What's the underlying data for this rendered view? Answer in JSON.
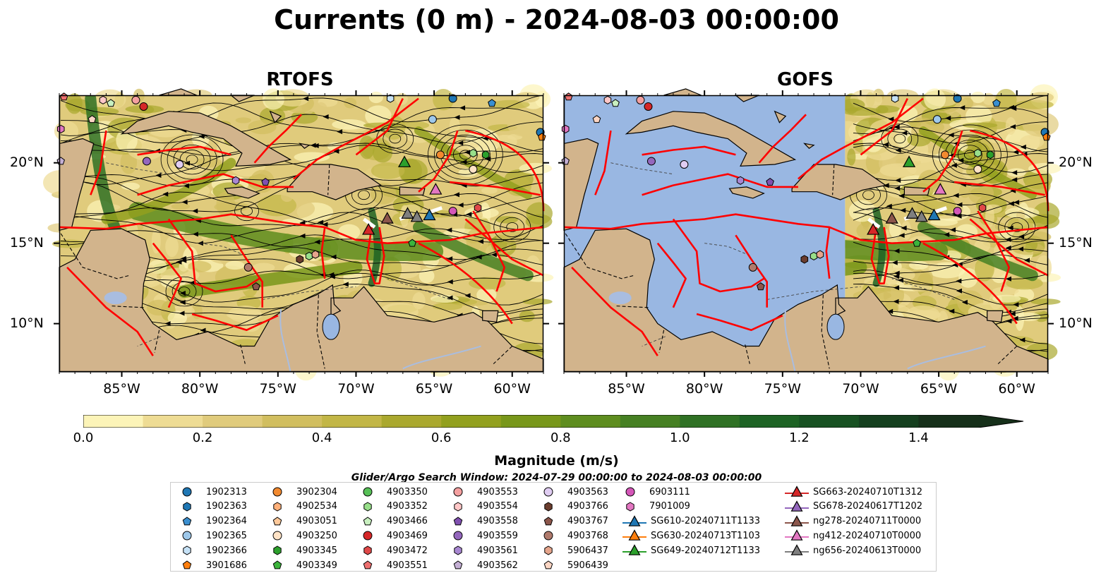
{
  "title": "Currents (0 m) - 2024-08-03 00:00:00",
  "panels": [
    {
      "title": "RTOFS"
    },
    {
      "title": "GOFS"
    }
  ],
  "axes": {
    "lat_labels": [
      "20°N",
      "15°N",
      "10°N"
    ],
    "lon_labels": [
      "85°W",
      "80°W",
      "75°W",
      "70°W",
      "65°W",
      "60°W"
    ]
  },
  "colorbar": {
    "label": "Magnitude (m/s)",
    "ticks": [
      "0.0",
      "0.2",
      "0.4",
      "0.6",
      "0.8",
      "1.0",
      "1.2",
      "1.4"
    ],
    "range": [
      0.0,
      1.5
    ],
    "extend": "max",
    "colors": [
      "#fcf4b8",
      "#eedc94",
      "#e0cb7c",
      "#d1be5f",
      "#c2b646",
      "#aaa82e",
      "#92a01e",
      "#78971a",
      "#5e8d1f",
      "#468023",
      "#2f7124",
      "#1d6324",
      "#175122",
      "#15401f",
      "#16301a"
    ]
  },
  "search_window": "Glider/Argo Search Window: 2024-07-29 00:00:00 to 2024-08-03 00:00:00",
  "legend": {
    "columns": [
      [
        {
          "label": "1902313",
          "marker": "circle",
          "color": "#1f77b4"
        },
        {
          "label": "1902363",
          "marker": "hexagon",
          "color": "#1f77b4"
        },
        {
          "label": "1902364",
          "marker": "pentagon",
          "color": "#3a8fd0"
        },
        {
          "label": "1902365",
          "marker": "circle",
          "color": "#9ec8ea"
        },
        {
          "label": "1902366",
          "marker": "hexagon",
          "color": "#c6e2f7"
        },
        {
          "label": "3901686",
          "marker": "pentagon",
          "color": "#ff7f0e"
        }
      ],
      [
        {
          "label": "3902304",
          "marker": "circle",
          "color": "#f28a30"
        },
        {
          "label": "4902534",
          "marker": "hexagon",
          "color": "#ffb07a"
        },
        {
          "label": "4903051",
          "marker": "pentagon",
          "color": "#ffc99a"
        },
        {
          "label": "4903250",
          "marker": "circle",
          "color": "#ffe3c6"
        },
        {
          "label": "4903345",
          "marker": "hexagon",
          "color": "#2ca02c"
        },
        {
          "label": "4903349",
          "marker": "pentagon",
          "color": "#3cb43c"
        }
      ],
      [
        {
          "label": "4903350",
          "marker": "circle",
          "color": "#57c057"
        },
        {
          "label": "4903352",
          "marker": "hexagon",
          "color": "#98df8a"
        },
        {
          "label": "4903466",
          "marker": "pentagon",
          "color": "#c9f0c0"
        },
        {
          "label": "4903469",
          "marker": "circle",
          "color": "#d62728"
        },
        {
          "label": "4903472",
          "marker": "hexagon",
          "color": "#e04848"
        },
        {
          "label": "4903551",
          "marker": "pentagon",
          "color": "#ee7070"
        }
      ],
      [
        {
          "label": "4903553",
          "marker": "circle",
          "color": "#f4a0a0"
        },
        {
          "label": "4903554",
          "marker": "hexagon",
          "color": "#ffc7c7"
        },
        {
          "label": "4903558",
          "marker": "pentagon",
          "color": "#8050b0"
        },
        {
          "label": "4903559",
          "marker": "circle",
          "color": "#9467bd"
        },
        {
          "label": "4903561",
          "marker": "hexagon",
          "color": "#a887d2"
        },
        {
          "label": "4903562",
          "marker": "pentagon",
          "color": "#c5b0d5"
        }
      ],
      [
        {
          "label": "4903563",
          "marker": "circle",
          "color": "#e0cdf2"
        },
        {
          "label": "4903766",
          "marker": "hexagon",
          "color": "#6b3d2e"
        },
        {
          "label": "4903767",
          "marker": "pentagon",
          "color": "#8c564b"
        },
        {
          "label": "4903768",
          "marker": "circle",
          "color": "#b07a6c"
        },
        {
          "label": "5906437",
          "marker": "hexagon",
          "color": "#e6a58c"
        },
        {
          "label": "5906439",
          "marker": "pentagon",
          "color": "#fcd6c4"
        }
      ],
      [
        {
          "label": "6903111",
          "marker": "circle",
          "color": "#d456b8"
        },
        {
          "label": "7901009",
          "marker": "hexagon",
          "color": "#e377c2"
        },
        {
          "label": "SG610-20240711T1133",
          "marker": "triangle",
          "color": "#1f77b4"
        },
        {
          "label": "SG630-20240713T1103",
          "marker": "triangle",
          "color": "#ff7f0e"
        },
        {
          "label": "SG649-20240712T1133",
          "marker": "triangle",
          "color": "#2ca02c"
        }
      ],
      [
        {
          "label": "SG663-20240710T1312",
          "marker": "triangle",
          "color": "#d62728"
        },
        {
          "label": "SG678-20240617T1202",
          "marker": "triangle",
          "color": "#9467bd"
        },
        {
          "label": "ng278-20240711T0000",
          "marker": "triangle",
          "color": "#8c564b"
        },
        {
          "label": "ng412-20240710T0000",
          "marker": "triangle",
          "color": "#e377c2"
        },
        {
          "label": "ng656-20240613T0000",
          "marker": "triangle",
          "color": "#7f7f7f"
        }
      ]
    ]
  },
  "map_colors": {
    "land": "#d2b48c",
    "ocean_missing": "#99b7e2",
    "eez_boundary": "#ff0000",
    "streamline": "#000000",
    "river": "#a9bde0"
  }
}
